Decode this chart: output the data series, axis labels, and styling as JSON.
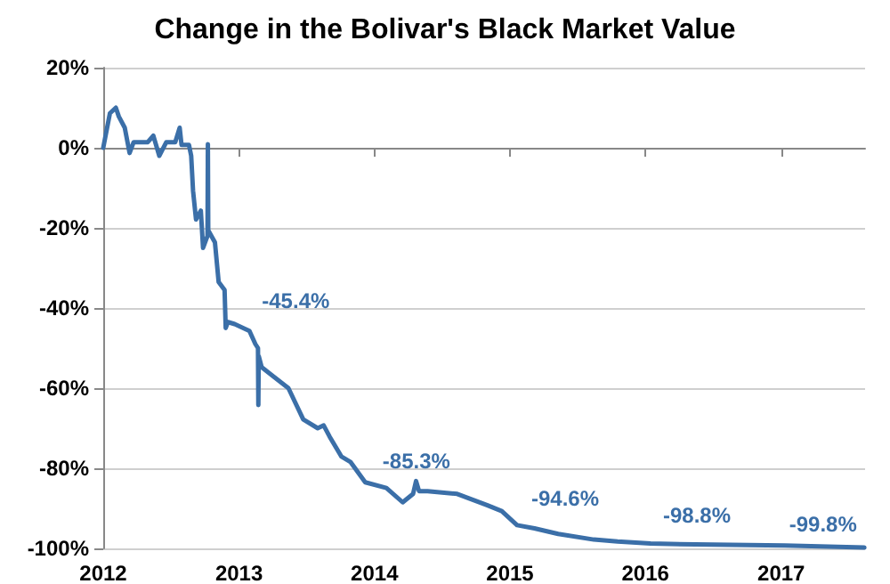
{
  "chart_data": {
    "type": "line",
    "title": "Change in the Bolivar's Black Market Value",
    "xlim": [
      "2012",
      "2017-08-15"
    ],
    "xticks": [
      "2012",
      "2013",
      "2014",
      "2015",
      "2016",
      "2017"
    ],
    "ylim": [
      -100,
      20
    ],
    "yticks": [
      {
        "value": 20,
        "label": "20%"
      },
      {
        "value": 0,
        "label": "0%"
      },
      {
        "value": -20,
        "label": "-20%"
      },
      {
        "value": -40,
        "label": "-40%"
      },
      {
        "value": -60,
        "label": "-60%"
      },
      {
        "value": -80,
        "label": "-80%"
      },
      {
        "value": -100,
        "label": "-100%"
      }
    ],
    "grid": "y",
    "marker": "none",
    "line_style": "solid",
    "series": [
      {
        "color": "#3b6fa8",
        "x": [
          "2012-01-01",
          "2012-01-19",
          "2012-02-04",
          "2012-02-12",
          "2012-02-28",
          "2012-03-12",
          "2012-03-23",
          "2012-04-30",
          "2012-05-15",
          "2012-05-31",
          "2012-06-19",
          "2012-07-13",
          "2012-07-25",
          "2012-07-30",
          "2012-08-19",
          "2012-08-25",
          "2012-08-30",
          "2012-09-07",
          "2012-09-20",
          "2012-09-26",
          "2012-10-08",
          "2012-10-09",
          "2012-10-10",
          "2012-10-28",
          "2012-11-07",
          "2012-11-23",
          "2012-11-26",
          "2012-12-02",
          "2012-12-20",
          "2013-01-29",
          "2013-02-14",
          "2013-02-21",
          "2013-02-22",
          "2013-02-23",
          "2013-03-03",
          "2013-04-04",
          "2013-05-14",
          "2013-06-23",
          "2013-08-01",
          "2013-08-17",
          "2013-09-02",
          "2013-10-04",
          "2013-10-28",
          "2013-12-07",
          "2014-02-02",
          "2014-03-18",
          "2014-04-15",
          "2014-04-23",
          "2014-05-01",
          "2014-05-24",
          "2014-08-12",
          "2014-10-31",
          "2014-12-10",
          "2015-01-20",
          "2015-03-08",
          "2015-05-11",
          "2015-08-15",
          "2015-10-18",
          "2016-01-15",
          "2016-05-15",
          "2017-01-10",
          "2017-08-13"
        ],
        "values": [
          0,
          8.6,
          10,
          7.8,
          5,
          -1.3,
          1.4,
          1.4,
          3,
          -2,
          1.4,
          1.4,
          5,
          0.7,
          0.7,
          -2,
          -10.7,
          -17.9,
          -15.7,
          -25,
          -22,
          0.9,
          -20.6,
          -23.6,
          -33.5,
          -35.5,
          -45,
          -43.5,
          -44,
          -45.7,
          -49,
          -50,
          -64.2,
          -52,
          -54.8,
          -57.1,
          -60,
          -67.8,
          -70,
          -69.3,
          -72.1,
          -77.1,
          -78.4,
          -83.5,
          -84.9,
          -88.5,
          -86.4,
          -83.2,
          -85.7,
          -85.7,
          -86.4,
          -89.2,
          -90.7,
          -94.2,
          -95,
          -96.4,
          -97.8,
          -98.3,
          -98.8,
          -99,
          -99.3,
          -99.8
        ]
      }
    ],
    "annotations": [
      {
        "text": "-45.4%",
        "x": "2013-01-29",
        "y": -45.4
      },
      {
        "text": "-85.3%",
        "x": "2013-12-20",
        "y": -85.3
      },
      {
        "text": "-94.6%",
        "x": "2015-01-25",
        "y": -94.6
      },
      {
        "text": "-98.8%",
        "x": "2016-01-15",
        "y": -98.8
      },
      {
        "text": "-99.8%",
        "x": "2017-06-01",
        "y": -99.8
      }
    ]
  }
}
